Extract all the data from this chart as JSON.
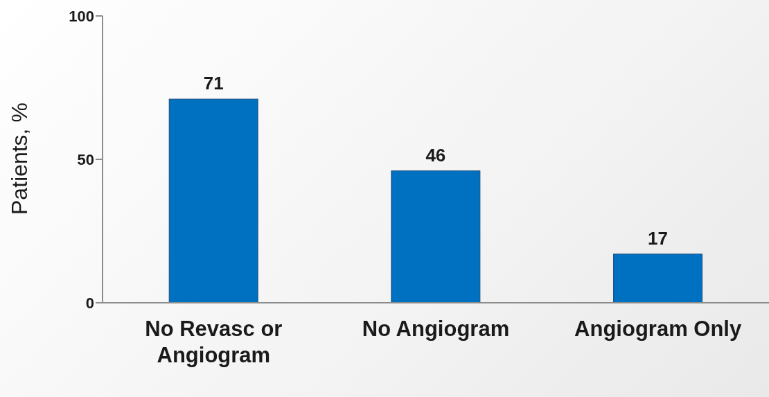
{
  "chart_data": {
    "type": "bar",
    "ylabel": "Patients, %",
    "categories": [
      "No Revasc or Angiogram",
      "No Angiogram",
      "Angiogram Only"
    ],
    "values": [
      71,
      46,
      17
    ],
    "color": "#0070c0",
    "ylim": [
      0,
      100
    ],
    "yticks": [
      0,
      50,
      100
    ],
    "grid": false,
    "data_labels": true
  }
}
